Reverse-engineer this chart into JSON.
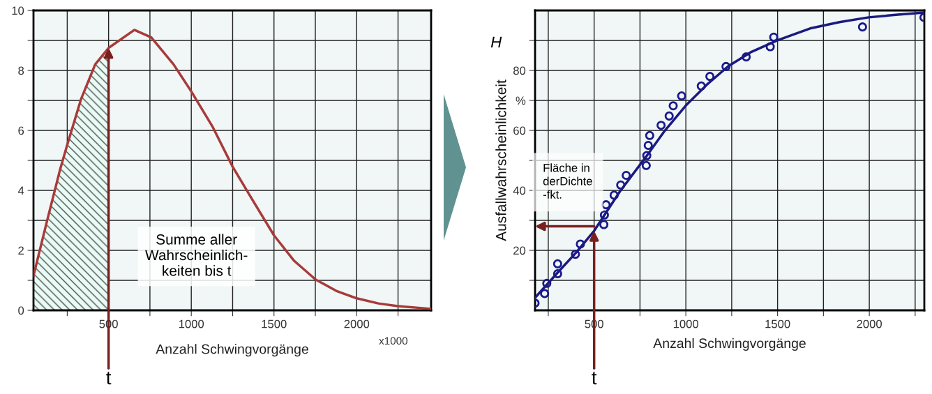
{
  "chart_data": [
    {
      "type": "line",
      "xlabel": "Anzahl Schwingvorgänge",
      "xlim": [
        46,
        2450
      ],
      "ylim": [
        0,
        10
      ],
      "xticks": [
        {
          "value": 250,
          "label": null
        },
        500,
        {
          "value": 750,
          "label": null
        },
        1000,
        {
          "value": 1250,
          "label": null
        },
        1500,
        {
          "value": 1750,
          "label": null
        },
        2000,
        {
          "value": 2250,
          "label": null
        }
      ],
      "yticks": [
        0,
        {
          "value": 1,
          "label": null
        },
        2,
        {
          "value": 3,
          "label": null
        },
        4,
        {
          "value": 5,
          "label": null
        },
        6,
        {
          "value": 7,
          "label": null
        },
        8,
        {
          "value": 9,
          "label": null
        },
        10
      ],
      "grid": true,
      "legend": false,
      "series": [
        {
          "color": "#a83a3a",
          "x": [
            46,
            122,
            207,
            249,
            334,
            419,
            500,
            656,
            758,
            893,
            1000,
            1131,
            1249,
            1368,
            1500,
            1622,
            1751,
            1876,
            2000,
            2131,
            2249,
            2449
          ],
          "values": [
            1.15,
            2.85,
            4.7,
            5.5,
            7.05,
            8.2,
            8.75,
            9.35,
            9.1,
            8.2,
            7.3,
            6.1,
            4.8,
            3.7,
            2.5,
            1.65,
            1.03,
            0.65,
            0.4,
            0.23,
            0.14,
            0.05
          ]
        },
        {
          "type": "area",
          "color": "#505050",
          "x": [
            46,
            122,
            207,
            249,
            334,
            419,
            500
          ],
          "values": [
            1.15,
            2.85,
            4.7,
            5.5,
            7.05,
            8.2,
            8.75
          ]
        }
      ],
      "annotations": [
        "Summe aller\nWahrscheinlich-\nkeiten bis t",
        "x1000",
        {
          "text": "t",
          "x": 500,
          "y": 8.75
        }
      ]
    },
    {
      "type": "scatter",
      "xlabel": "Anzahl Schwingvorgänge",
      "ylabel": "Ausfallwahrscheinlichkeit",
      "xlim": [
        178,
        2300
      ],
      "ylim": [
        0,
        100
      ],
      "xticks": [
        {
          "value": 250,
          "label": null
        },
        500,
        {
          "value": 750,
          "label": null
        },
        1000,
        {
          "value": 1250,
          "label": null
        },
        1500,
        {
          "value": 1750,
          "label": null
        },
        2000,
        {
          "value": 2250,
          "label": null
        }
      ],
      "yticks": [
        {
          "value": 10,
          "label": null
        },
        20,
        {
          "value": 30,
          "label": null
        },
        40,
        {
          "value": 50,
          "label": null
        },
        60,
        {
          "value": 70,
          "label": "%"
        },
        80,
        {
          "value": 90,
          "label": null
        }
      ],
      "grid": true,
      "legend": false,
      "series": [
        {
          "marker": "circle",
          "color": "#1a1a8c",
          "x": [
            178,
            230,
            242,
            301,
            301,
            398,
            425,
            553,
            556,
            565,
            609,
            645,
            675,
            784,
            787,
            795,
            803,
            865,
            909,
            931,
            977,
            1084,
            1131,
            1219,
            1329,
            1460,
            1479,
            1963,
            2298
          ],
          "values": [
            2.4,
            5.6,
            9.0,
            15.5,
            12.2,
            18.7,
            22.1,
            28.6,
            31.8,
            35.2,
            38.4,
            41.8,
            45.0,
            48.3,
            51.6,
            55.0,
            58.3,
            61.7,
            64.8,
            68.2,
            71.5,
            74.8,
            78.0,
            81.3,
            84.5,
            87.9,
            91.1,
            94.5,
            97.7
          ]
        },
        {
          "type": "line",
          "color": "#1a1a80",
          "x": [
            178,
            306,
            401,
            500,
            640,
            784,
            880,
            1000,
            1119,
            1231,
            1358,
            1501,
            1677,
            1837,
            1996,
            2155,
            2299
          ],
          "values": [
            4.2,
            12.9,
            19.2,
            26.5,
            39.6,
            51.3,
            59.5,
            68.3,
            75.5,
            81.4,
            86.2,
            90.1,
            94.0,
            96.1,
            97.7,
            98.6,
            99.3
          ]
        }
      ],
      "annotations": [
        "H",
        "Fläche in\nderDichte\n-fkt.",
        {
          "text": "t",
          "x": 500,
          "y": 26.5
        }
      ]
    }
  ]
}
